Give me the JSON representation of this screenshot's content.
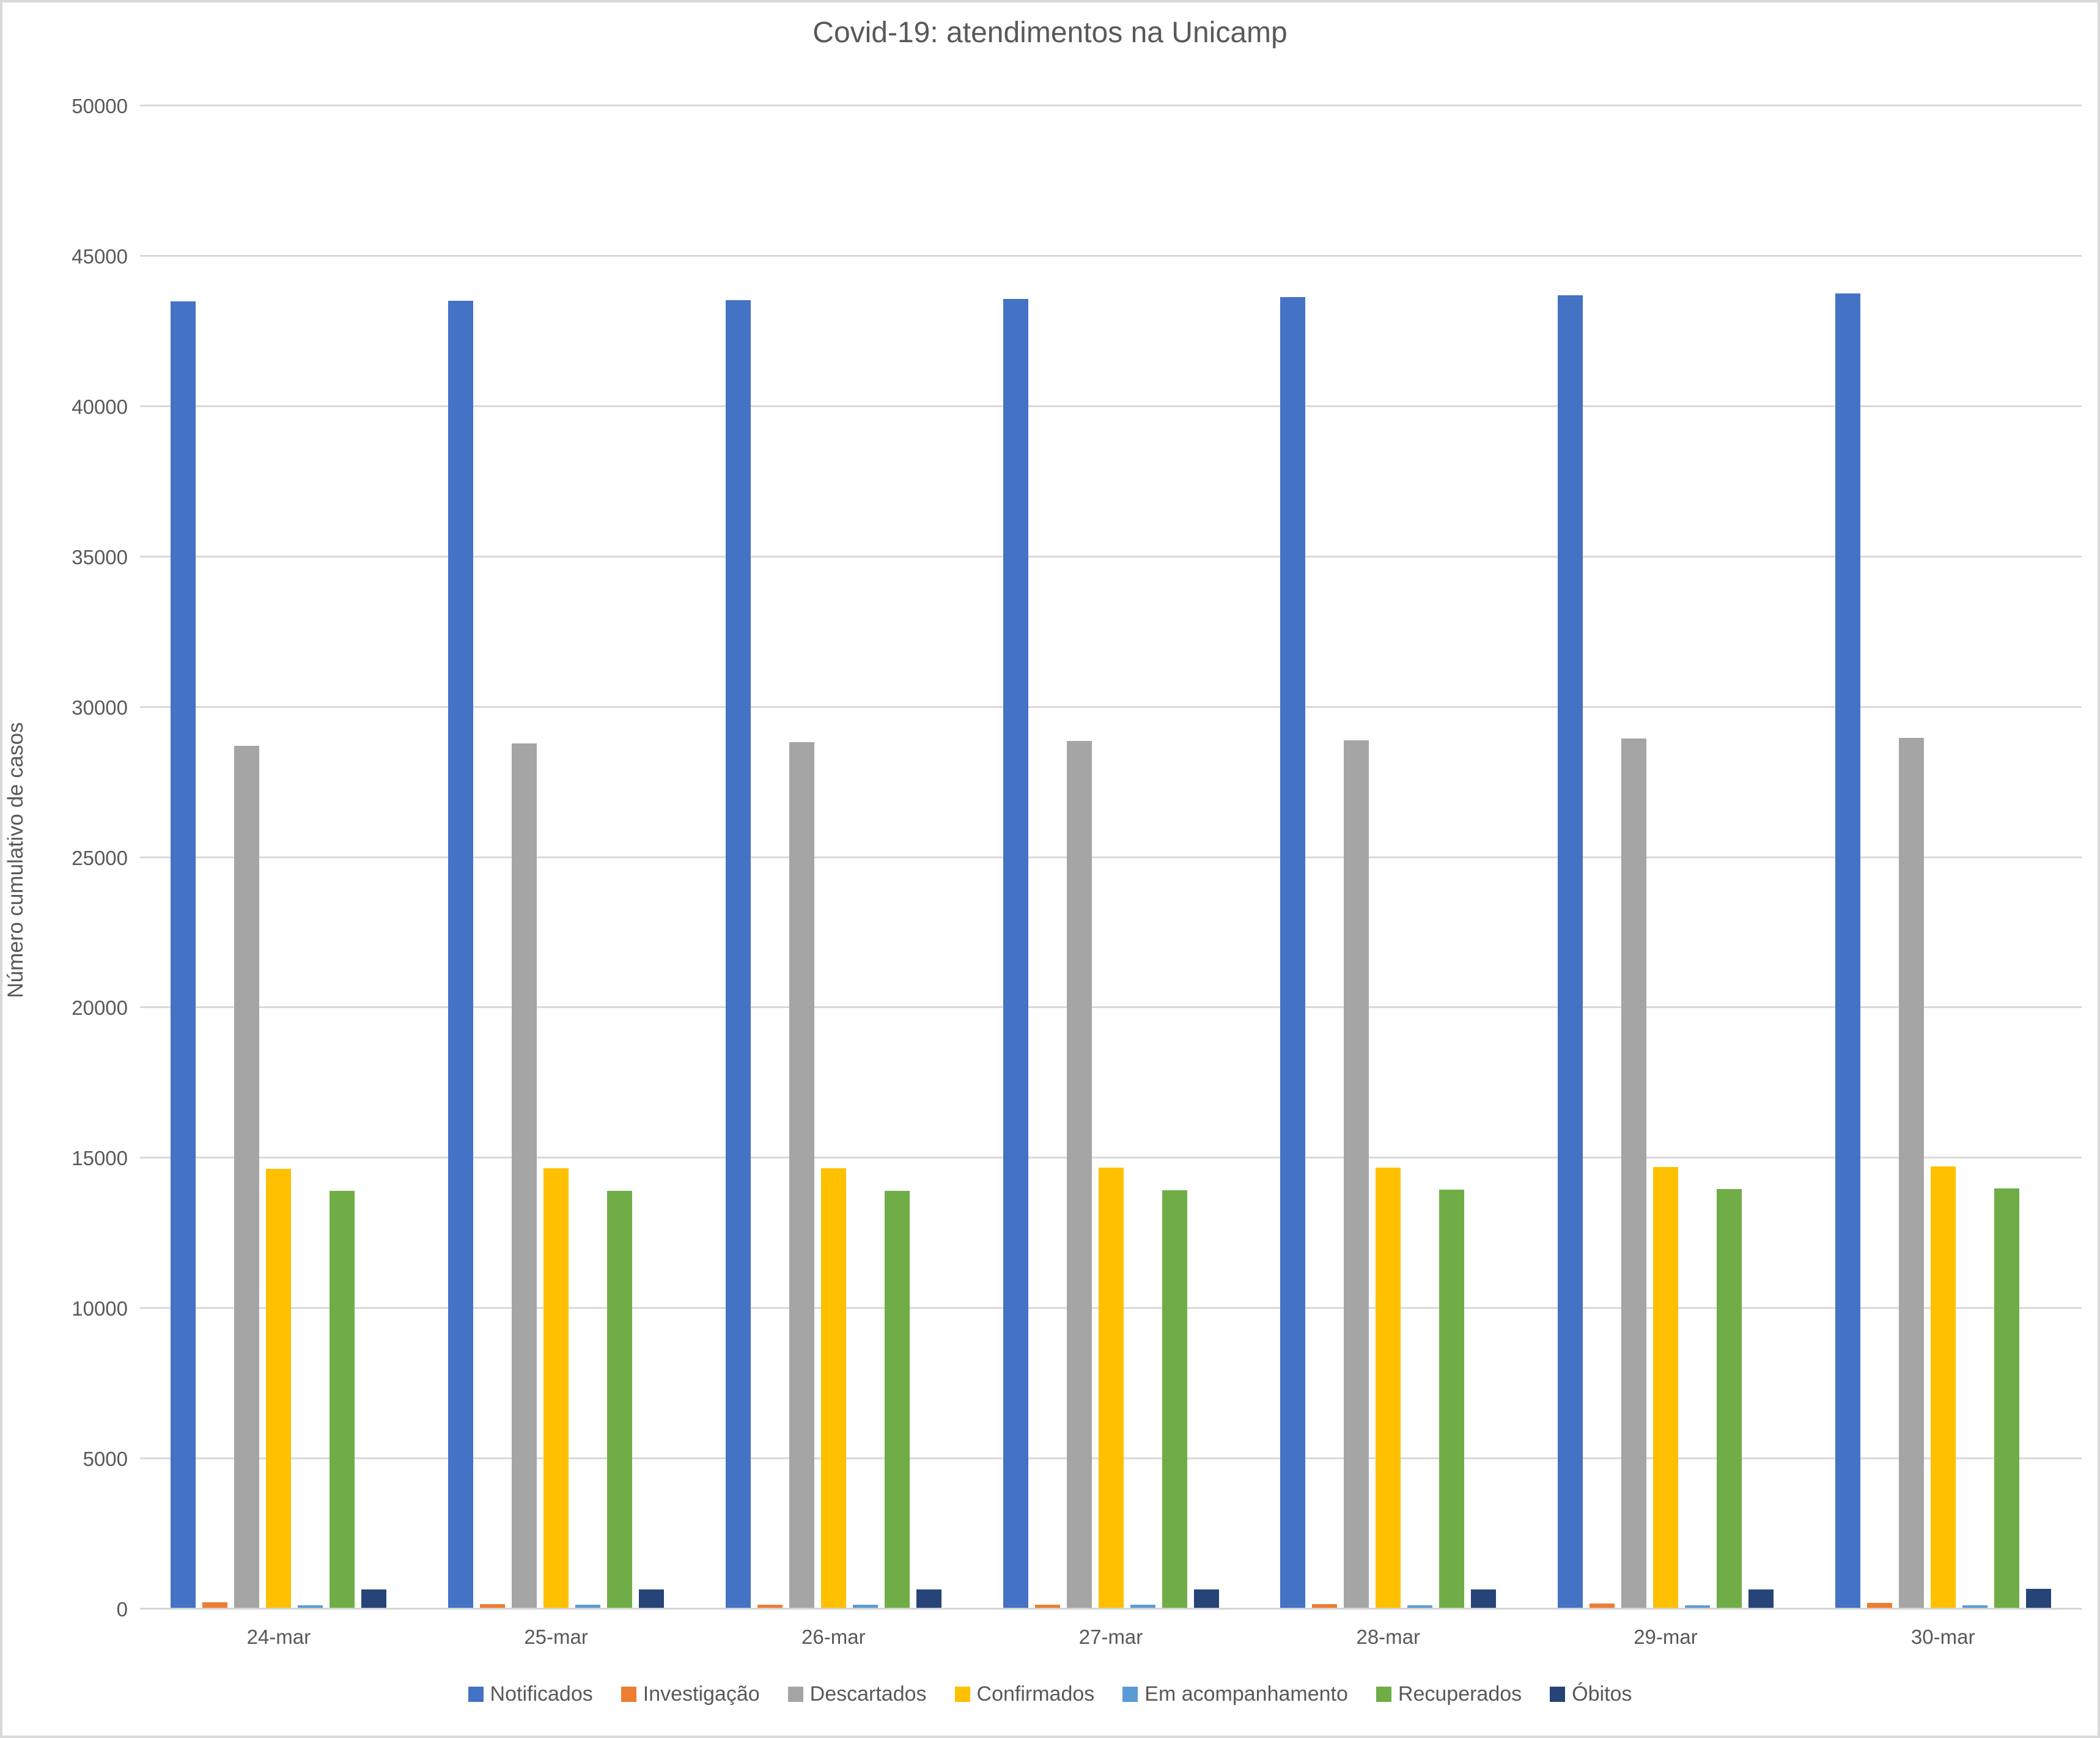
{
  "title": "Covid-19: atendimentos na Unicamp",
  "colors": {
    "background": "#FFFFFF",
    "border": "#D9D9D9",
    "gridline": "#D9D9D9",
    "text": "#595959"
  },
  "chart_data": {
    "type": "bar",
    "title": "Covid-19: atendimentos na Unicamp",
    "xlabel": "",
    "ylabel": "Número cumulativo de casos",
    "ylim": [
      0,
      50000
    ],
    "ytick_step": 5000,
    "ytick_labels": [
      "0",
      "5000",
      "10000",
      "15000",
      "20000",
      "25000",
      "30000",
      "35000",
      "40000",
      "45000",
      "50000"
    ],
    "grid": true,
    "legend_position": "bottom",
    "categories": [
      "24-mar",
      "25-mar",
      "26-mar",
      "27-mar",
      "28-mar",
      "29-mar",
      "30-mar"
    ],
    "series": [
      {
        "name": "Notificados",
        "color": "#4472C4",
        "values": [
          43510,
          43530,
          43540,
          43580,
          43640,
          43700,
          43770
        ]
      },
      {
        "name": "Investigação",
        "color": "#ED7D31",
        "values": [
          180,
          120,
          100,
          100,
          130,
          150,
          160
        ]
      },
      {
        "name": "Descartados",
        "color": "#A5A5A5",
        "values": [
          28700,
          28790,
          28820,
          28860,
          28880,
          28940,
          28970
        ]
      },
      {
        "name": "Confirmados",
        "color": "#FFC000",
        "values": [
          14620,
          14630,
          14640,
          14650,
          14660,
          14680,
          14700
        ]
      },
      {
        "name": "Em acompanhamento",
        "color": "#5B9BD5",
        "values": [
          90,
          100,
          110,
          100,
          90,
          85,
          80
        ]
      },
      {
        "name": "Recuperados",
        "color": "#70AD47",
        "values": [
          13880,
          13890,
          13890,
          13900,
          13930,
          13940,
          13960
        ]
      },
      {
        "name": "Óbitos",
        "color": "#264478",
        "values": [
          612,
          613,
          614,
          616,
          618,
          620,
          622
        ]
      }
    ]
  }
}
